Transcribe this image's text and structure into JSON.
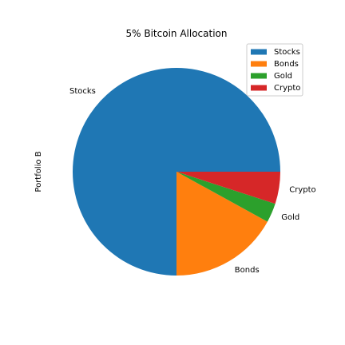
{
  "chart_data": {
    "type": "pie",
    "title": "5% Bitcoin Allocation",
    "ylabel": "Portfolio B",
    "categories": [
      "Stocks",
      "Bonds",
      "Gold",
      "Crypto"
    ],
    "values": [
      75,
      17,
      3,
      5
    ],
    "colors": [
      "#1f77b4",
      "#ff7f0e",
      "#2ca02c",
      "#d62728"
    ],
    "start_angle_deg": 0,
    "direction": "counterclockwise",
    "legend": {
      "position": "top-right",
      "entries": [
        "Stocks",
        "Bonds",
        "Gold",
        "Crypto"
      ]
    }
  }
}
